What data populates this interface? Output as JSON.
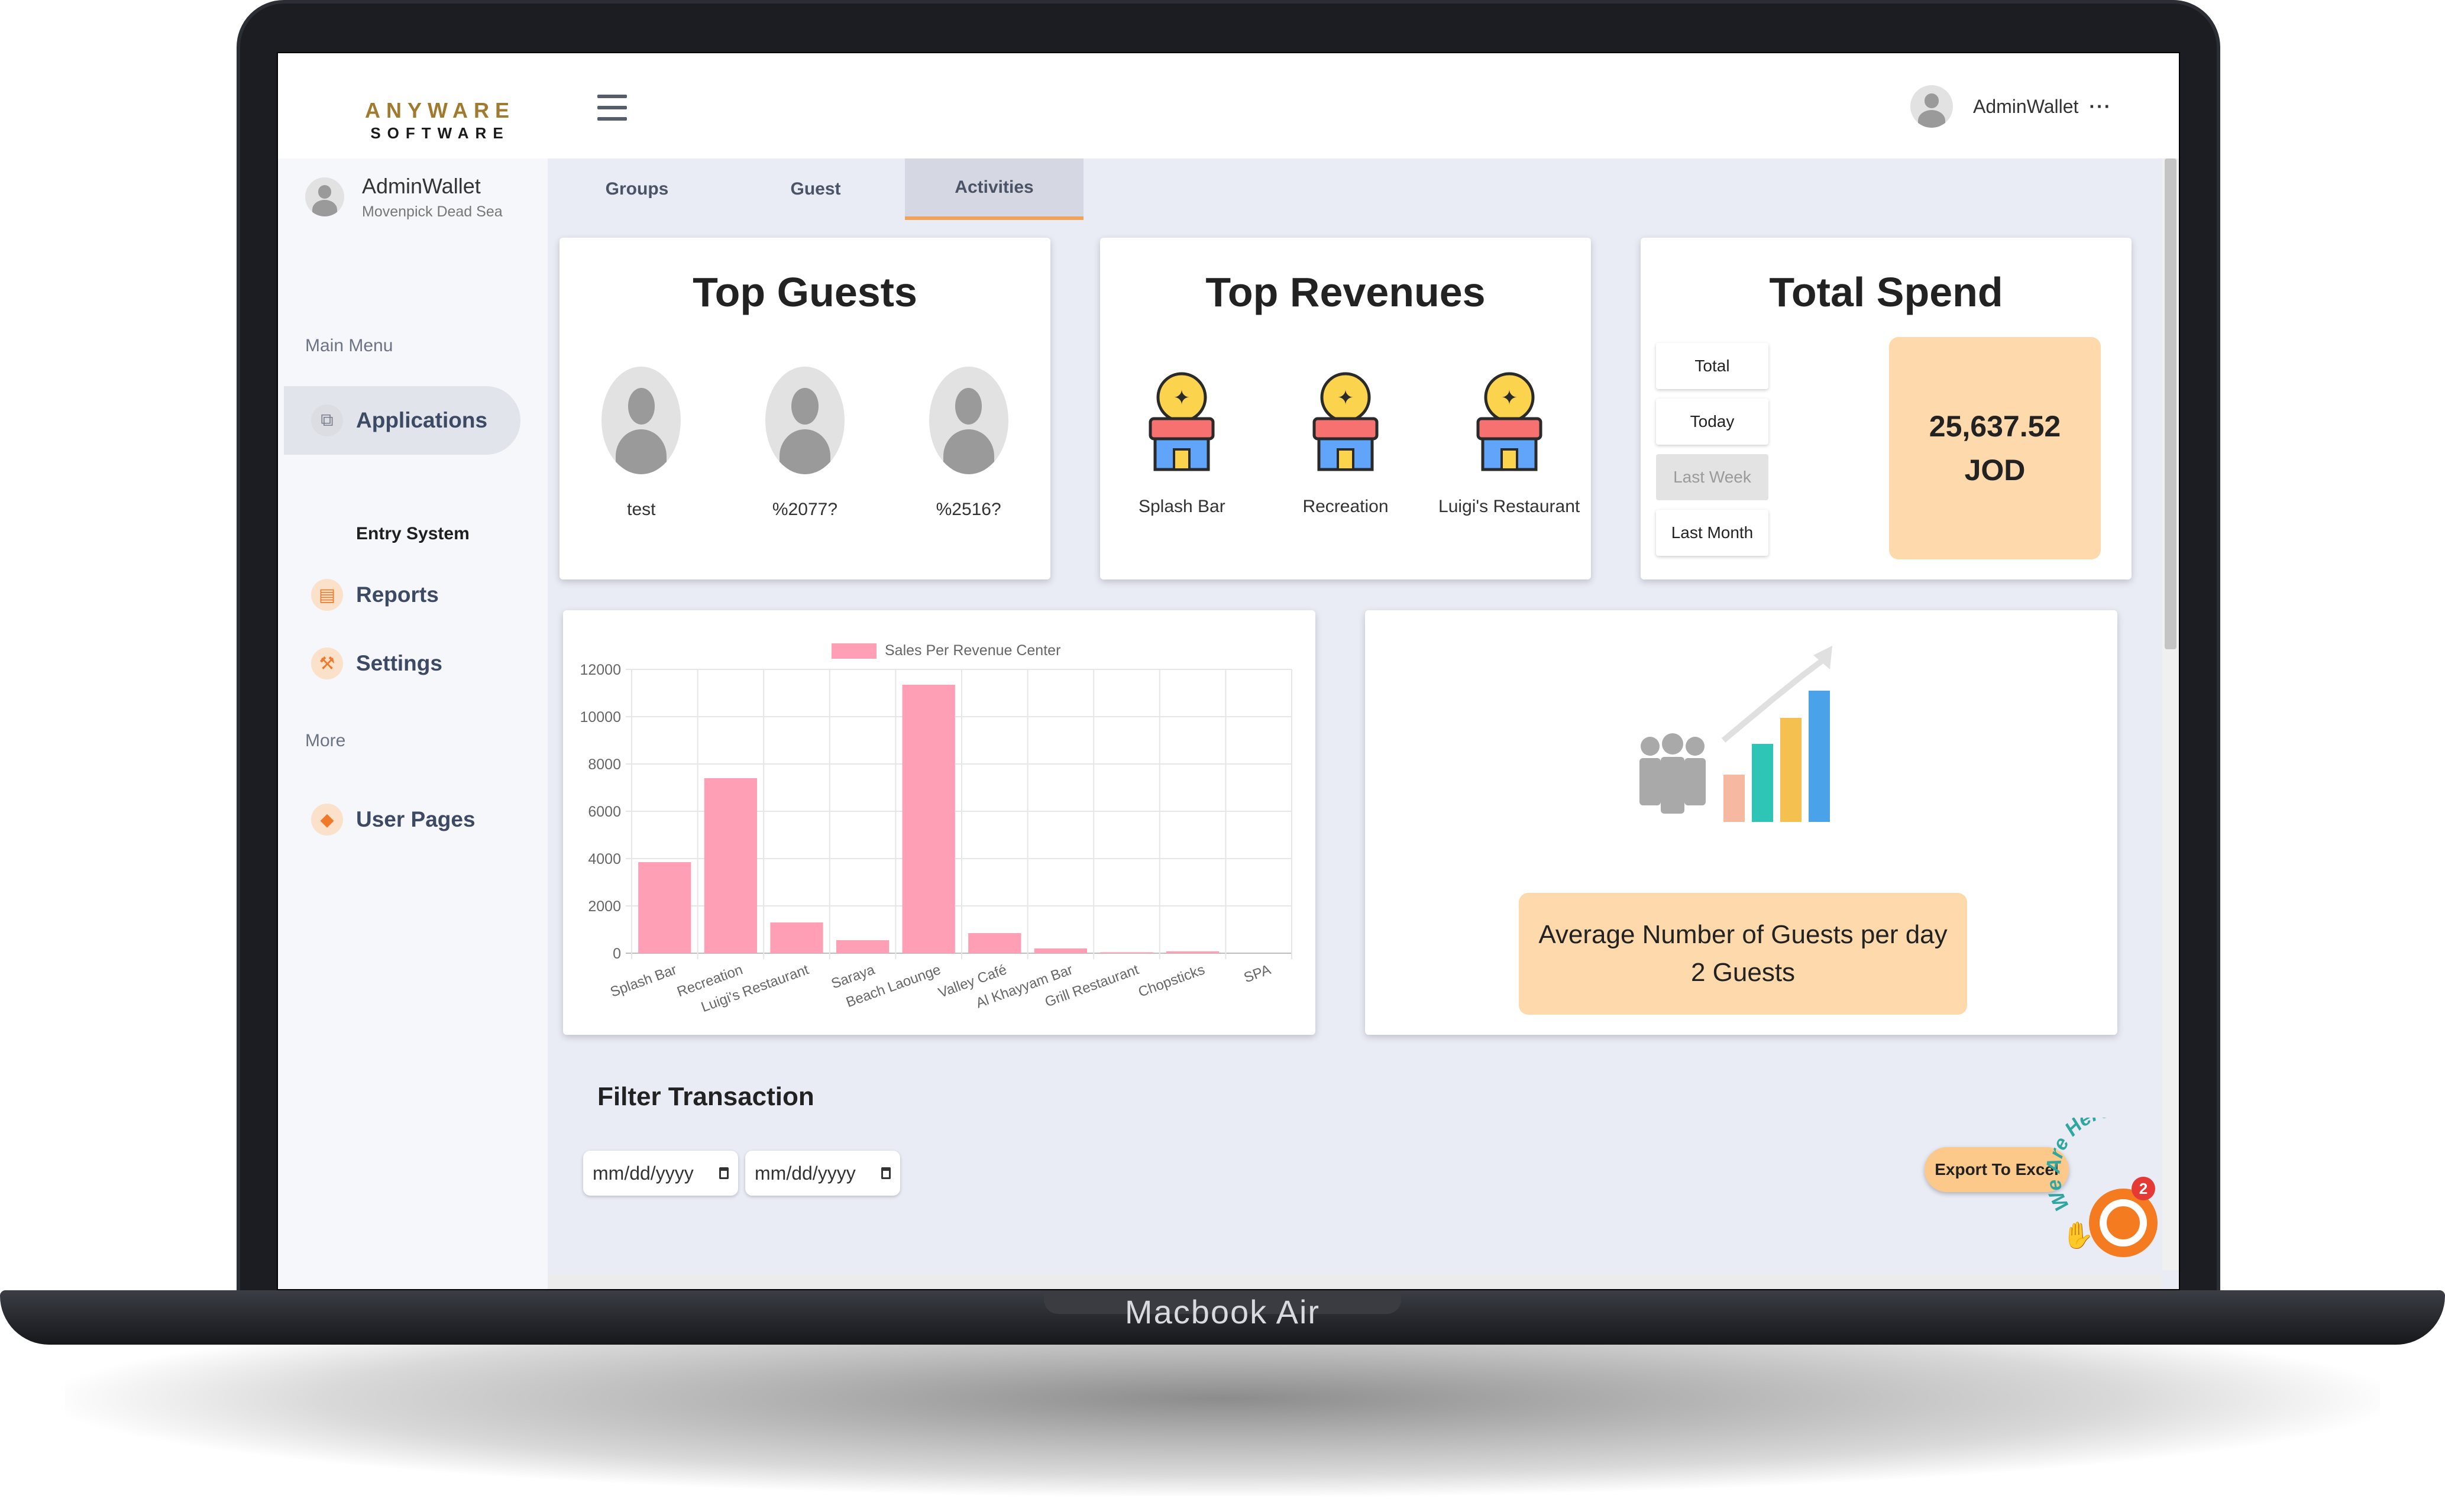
{
  "device_label": "Macbook Air",
  "brand": {
    "line1": "ANYWARE",
    "line2": "SOFTWARE"
  },
  "header": {
    "user_name": "AdminWallet",
    "more": "···"
  },
  "sidebar": {
    "user_name": "AdminWallet",
    "hotel": "Movenpick Dead Sea",
    "main_menu_title": "Main Menu",
    "items": [
      {
        "label": "Applications",
        "icon": "applications-icon",
        "active": true
      },
      {
        "label": "Reports",
        "icon": "reports-icon"
      },
      {
        "label": "Settings",
        "icon": "wrench-icon"
      }
    ],
    "submenu": "Entry System",
    "more_title": "More",
    "more_items": [
      {
        "label": "User Pages",
        "icon": "user-pages-icon"
      }
    ]
  },
  "tabs": [
    {
      "label": "Groups",
      "active": false
    },
    {
      "label": "Guest",
      "active": false
    },
    {
      "label": "Activities",
      "active": true
    }
  ],
  "top_guests": {
    "title": "Top Guests",
    "guests": [
      "test",
      "%2077?",
      "%2516?"
    ]
  },
  "top_revenues": {
    "title": "Top Revenues",
    "centers": [
      "Splash Bar",
      "Recreation",
      "Luigi's Restaurant"
    ]
  },
  "total_spend": {
    "title": "Total Spend",
    "periods": [
      {
        "label": "Total",
        "enabled": true
      },
      {
        "label": "Today",
        "enabled": true
      },
      {
        "label": "Last Week",
        "enabled": false
      },
      {
        "label": "Last Month",
        "enabled": true
      }
    ],
    "amount": "25,637.52",
    "currency": "JOD"
  },
  "average_guests": {
    "line1": "Average Number of Guests per day",
    "line2": "2 Guests"
  },
  "filter": {
    "title": "Filter Transaction",
    "date_from_placeholder": "mm/dd/yyyy",
    "date_to_placeholder": "mm/dd/yyyy",
    "export_label": "Export To Excel"
  },
  "chat": {
    "badge": "2",
    "caption": "We Are Here!"
  },
  "colors": {
    "accent_orange": "#fdd9ab",
    "bar_pink": "#ff9fb5",
    "tab_underline": "#f0a45b",
    "chat_orange": "#f47b20"
  },
  "chart_data": {
    "type": "bar",
    "legend": "Sales Per Revenue Center",
    "legend_position": "top-center",
    "categories": [
      "Splash Bar",
      "Recreation",
      "Luigi's Restaurant",
      "Saraya",
      "Beach Laounge",
      "Valley Café",
      "Al Khayyam Bar",
      "Grill Restaurant",
      "Chopsticks",
      "SPA"
    ],
    "values": [
      3850,
      7400,
      1300,
      550,
      11350,
      850,
      200,
      40,
      80,
      0
    ],
    "yticks": [
      "0",
      "2000",
      "4000",
      "6000",
      "8000",
      "10000",
      "12000"
    ],
    "ylim": [
      0,
      12000
    ],
    "grid": true
  }
}
